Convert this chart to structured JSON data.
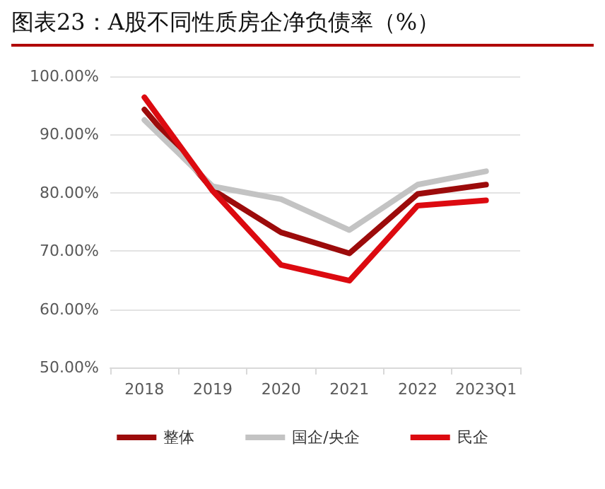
{
  "chart_data": {
    "type": "line",
    "title": "图表23：A股不同性质房企净负债率（%）",
    "categories": [
      "2018",
      "2019",
      "2020",
      "2021",
      "2022",
      "2023Q1"
    ],
    "series": [
      {
        "name": "整体",
        "color": "#9c0b0b",
        "values": [
          94.3,
          80.5,
          73.2,
          69.6,
          79.8,
          81.4
        ]
      },
      {
        "name": "国企/央企",
        "color": "#c3c3c3",
        "values": [
          92.5,
          81.1,
          78.9,
          73.6,
          81.4,
          83.7
        ]
      },
      {
        "name": "民企",
        "color": "#dc0a10",
        "values": [
          96.4,
          80.3,
          67.6,
          64.9,
          77.8,
          78.7
        ]
      }
    ],
    "ylim": [
      50,
      100
    ],
    "yticks": [
      {
        "value": 50,
        "label": "50.00%"
      },
      {
        "value": 60,
        "label": "60.00%"
      },
      {
        "value": 70,
        "label": "70.00%"
      },
      {
        "value": 80,
        "label": "80.00%"
      },
      {
        "value": 90,
        "label": "90.00%"
      },
      {
        "value": 100,
        "label": "100.00%"
      }
    ],
    "grid": "y",
    "legend": "bottom",
    "marker": "none",
    "line_style": "solid"
  }
}
